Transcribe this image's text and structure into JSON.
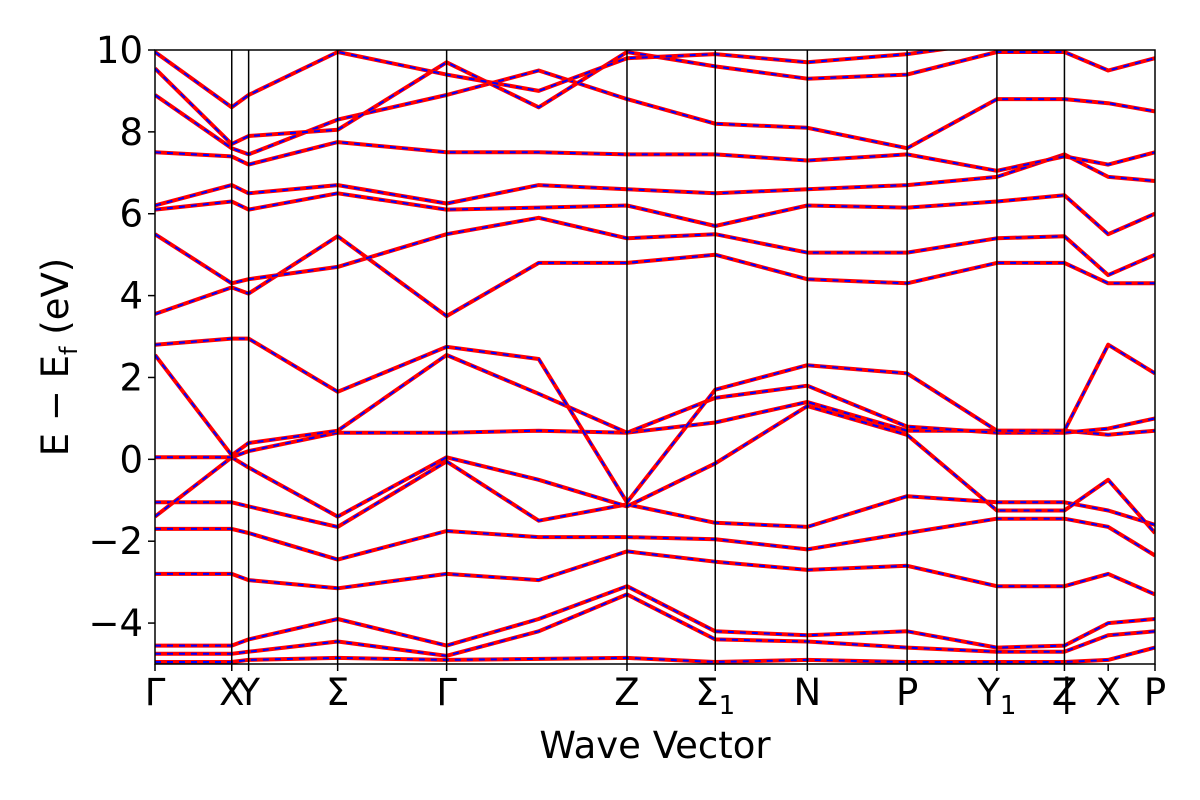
{
  "chart_data": {
    "type": "line",
    "title": "",
    "xlabel": "Wave Vector",
    "ylabel": "E − E",
    "ylabel_subscript": "f",
    "ylabel_unit": "(eV)",
    "ylim": [
      -5,
      10
    ],
    "yticks": [
      -4,
      -2,
      0,
      2,
      4,
      6,
      8,
      10
    ],
    "ytick_labels": [
      "−4",
      "−2",
      "0",
      "2",
      "4",
      "6",
      "8",
      "10"
    ],
    "xlim": [
      0,
      13.03
    ],
    "kpoints": [
      {
        "label": "Γ",
        "sub": "",
        "x": 0.0
      },
      {
        "label": "X",
        "sub": "",
        "x": 1.0
      },
      {
        "label": "Y",
        "sub": "",
        "x": 1.22
      },
      {
        "label": "Σ",
        "sub": "",
        "x": 2.38
      },
      {
        "label": "Γ",
        "sub": "",
        "x": 3.8
      },
      {
        "label": "Z",
        "sub": "",
        "x": 6.15
      },
      {
        "label": "Σ",
        "sub": "1",
        "x": 7.3
      },
      {
        "label": "N",
        "sub": "",
        "x": 8.5
      },
      {
        "label": "P",
        "sub": "",
        "x": 9.8
      },
      {
        "label": "Y",
        "sub": "1",
        "x": 10.97
      },
      {
        "label": "Z",
        "sub": "",
        "x": 11.85
      },
      {
        "label": "|",
        "sub": "",
        "x": 11.88
      },
      {
        "label": "X",
        "sub": "",
        "x": 12.42
      },
      {
        "label": "P",
        "sub": "",
        "x": 13.03
      }
    ],
    "vlines": [
      1.0,
      1.22,
      2.38,
      3.8,
      6.15,
      7.3,
      8.5,
      9.8,
      10.97,
      11.85
    ],
    "series_styles": [
      {
        "style": "solid",
        "color": "#ff0000"
      },
      {
        "style": "dashed",
        "color": "#0000ff"
      }
    ],
    "bands": [
      [
        [
          0,
          -4.95
        ],
        [
          1,
          -4.95
        ],
        [
          1.22,
          -4.9
        ],
        [
          2.38,
          -4.85
        ],
        [
          3.8,
          -4.9
        ],
        [
          6.15,
          -4.85
        ],
        [
          7.3,
          -4.95
        ],
        [
          8.5,
          -4.9
        ],
        [
          9.8,
          -4.95
        ],
        [
          10.97,
          -4.95
        ],
        [
          11.85,
          -4.95
        ],
        [
          12.42,
          -4.9
        ],
        [
          13.03,
          -4.6
        ]
      ],
      [
        [
          0,
          -4.75
        ],
        [
          1,
          -4.75
        ],
        [
          1.22,
          -4.7
        ],
        [
          2.38,
          -4.45
        ],
        [
          3.8,
          -4.8
        ],
        [
          5.0,
          -4.2
        ],
        [
          6.15,
          -3.3
        ],
        [
          7.3,
          -4.4
        ],
        [
          8.5,
          -4.45
        ],
        [
          9.8,
          -4.6
        ],
        [
          10.97,
          -4.7
        ],
        [
          11.85,
          -4.7
        ],
        [
          12.42,
          -4.3
        ],
        [
          13.03,
          -4.2
        ]
      ],
      [
        [
          0,
          -4.55
        ],
        [
          1,
          -4.55
        ],
        [
          1.22,
          -4.4
        ],
        [
          2.38,
          -3.9
        ],
        [
          3.8,
          -4.55
        ],
        [
          5.0,
          -3.9
        ],
        [
          6.15,
          -3.1
        ],
        [
          7.3,
          -4.2
        ],
        [
          8.5,
          -4.3
        ],
        [
          9.8,
          -4.2
        ],
        [
          10.97,
          -4.6
        ],
        [
          11.85,
          -4.55
        ],
        [
          12.42,
          -4.0
        ],
        [
          13.03,
          -3.9
        ]
      ],
      [
        [
          0,
          -2.8
        ],
        [
          1,
          -2.8
        ],
        [
          1.22,
          -2.95
        ],
        [
          2.38,
          -3.15
        ],
        [
          3.8,
          -2.8
        ],
        [
          5.0,
          -2.95
        ],
        [
          6.15,
          -2.25
        ],
        [
          7.3,
          -2.5
        ],
        [
          8.5,
          -2.7
        ],
        [
          9.8,
          -2.6
        ],
        [
          10.97,
          -3.1
        ],
        [
          11.85,
          -3.1
        ],
        [
          12.42,
          -2.8
        ],
        [
          13.03,
          -3.3
        ]
      ],
      [
        [
          0,
          -1.7
        ],
        [
          1,
          -1.7
        ],
        [
          1.22,
          -1.8
        ],
        [
          2.38,
          -2.45
        ],
        [
          3.8,
          -1.75
        ],
        [
          5.0,
          -1.9
        ],
        [
          6.15,
          -1.9
        ],
        [
          7.3,
          -1.95
        ],
        [
          8.5,
          -2.2
        ],
        [
          9.8,
          -1.8
        ],
        [
          10.97,
          -1.45
        ],
        [
          11.85,
          -1.45
        ],
        [
          12.42,
          -1.65
        ],
        [
          13.03,
          -2.35
        ]
      ],
      [
        [
          0,
          -1.05
        ],
        [
          1,
          -1.05
        ],
        [
          1.22,
          -1.15
        ],
        [
          2.38,
          -1.65
        ],
        [
          3.8,
          -0.05
        ],
        [
          5.0,
          -1.5
        ],
        [
          6.15,
          -1.1
        ],
        [
          7.3,
          -1.55
        ],
        [
          8.5,
          -1.65
        ],
        [
          9.8,
          -0.9
        ],
        [
          10.97,
          -1.05
        ],
        [
          11.85,
          -1.05
        ],
        [
          12.42,
          -1.25
        ],
        [
          13.03,
          -1.6
        ]
      ],
      [
        [
          0,
          -1.4
        ],
        [
          1,
          0.05
        ],
        [
          1.22,
          -0.2
        ],
        [
          2.38,
          -1.4
        ],
        [
          3.8,
          0.05
        ],
        [
          5.0,
          -0.5
        ],
        [
          6.15,
          -1.15
        ],
        [
          7.3,
          -0.1
        ],
        [
          8.5,
          1.3
        ],
        [
          9.8,
          0.6
        ],
        [
          10.97,
          -1.25
        ],
        [
          11.85,
          -1.25
        ],
        [
          12.42,
          -0.5
        ],
        [
          13.03,
          -1.8
        ]
      ],
      [
        [
          0,
          0.05
        ],
        [
          1,
          0.05
        ],
        [
          1.22,
          0.2
        ],
        [
          2.38,
          0.65
        ],
        [
          3.8,
          0.65
        ],
        [
          5.0,
          0.7
        ],
        [
          6.15,
          0.65
        ],
        [
          7.3,
          0.9
        ],
        [
          8.5,
          1.4
        ],
        [
          9.8,
          0.7
        ],
        [
          10.97,
          0.7
        ],
        [
          11.85,
          0.7
        ],
        [
          12.42,
          0.6
        ],
        [
          13.03,
          0.7
        ]
      ],
      [
        [
          0,
          2.55
        ],
        [
          1,
          0.1
        ],
        [
          1.22,
          0.4
        ],
        [
          2.38,
          0.7
        ],
        [
          3.8,
          2.55
        ],
        [
          5.0,
          1.6
        ],
        [
          6.15,
          0.65
        ],
        [
          7.3,
          1.5
        ],
        [
          8.5,
          1.8
        ],
        [
          9.8,
          0.8
        ],
        [
          10.97,
          0.65
        ],
        [
          11.85,
          0.65
        ],
        [
          12.42,
          0.75
        ],
        [
          13.03,
          1.0
        ]
      ],
      [
        [
          0,
          2.8
        ],
        [
          1,
          2.95
        ],
        [
          1.22,
          2.95
        ],
        [
          2.38,
          1.65
        ],
        [
          3.8,
          2.75
        ],
        [
          5.0,
          2.45
        ],
        [
          6.15,
          -1.05
        ],
        [
          7.3,
          1.7
        ],
        [
          8.5,
          2.3
        ],
        [
          9.8,
          2.1
        ],
        [
          10.97,
          0.7
        ],
        [
          11.85,
          0.7
        ],
        [
          12.42,
          2.8
        ],
        [
          13.03,
          2.1
        ]
      ],
      [
        [
          0,
          3.55
        ],
        [
          1,
          4.2
        ],
        [
          1.22,
          4.05
        ],
        [
          2.38,
          5.45
        ],
        [
          3.8,
          3.5
        ],
        [
          5.0,
          4.8
        ],
        [
          6.15,
          4.8
        ],
        [
          7.3,
          5.0
        ],
        [
          8.5,
          4.4
        ],
        [
          9.8,
          4.3
        ],
        [
          10.97,
          4.8
        ],
        [
          11.85,
          4.8
        ],
        [
          12.42,
          4.3
        ],
        [
          13.03,
          4.3
        ]
      ],
      [
        [
          0,
          5.5
        ],
        [
          1,
          4.3
        ],
        [
          1.22,
          4.4
        ],
        [
          2.38,
          4.7
        ],
        [
          3.8,
          5.5
        ],
        [
          5.0,
          5.9
        ],
        [
          6.15,
          5.4
        ],
        [
          7.3,
          5.5
        ],
        [
          8.5,
          5.05
        ],
        [
          9.8,
          5.05
        ],
        [
          10.97,
          5.4
        ],
        [
          11.85,
          5.45
        ],
        [
          12.42,
          4.5
        ],
        [
          13.03,
          5.0
        ]
      ],
      [
        [
          0,
          6.1
        ],
        [
          1,
          6.3
        ],
        [
          1.22,
          6.1
        ],
        [
          2.38,
          6.5
        ],
        [
          3.8,
          6.1
        ],
        [
          5.0,
          6.15
        ],
        [
          6.15,
          6.2
        ],
        [
          7.3,
          5.7
        ],
        [
          8.5,
          6.2
        ],
        [
          9.8,
          6.15
        ],
        [
          10.97,
          6.3
        ],
        [
          11.85,
          6.45
        ],
        [
          12.42,
          5.5
        ],
        [
          13.03,
          6.0
        ]
      ],
      [
        [
          0,
          6.2
        ],
        [
          1,
          6.7
        ],
        [
          1.22,
          6.5
        ],
        [
          2.38,
          6.7
        ],
        [
          3.8,
          6.25
        ],
        [
          5.0,
          6.7
        ],
        [
          6.15,
          6.6
        ],
        [
          7.3,
          6.5
        ],
        [
          8.5,
          6.6
        ],
        [
          9.8,
          6.7
        ],
        [
          10.97,
          6.9
        ],
        [
          11.85,
          7.45
        ],
        [
          12.42,
          6.9
        ],
        [
          13.03,
          6.8
        ]
      ],
      [
        [
          0,
          7.5
        ],
        [
          1,
          7.4
        ],
        [
          1.22,
          7.2
        ],
        [
          2.38,
          7.75
        ],
        [
          3.8,
          7.5
        ],
        [
          5.0,
          7.5
        ],
        [
          6.15,
          7.45
        ],
        [
          7.3,
          7.45
        ],
        [
          8.5,
          7.3
        ],
        [
          9.8,
          7.45
        ],
        [
          10.97,
          7.05
        ],
        [
          11.85,
          7.4
        ],
        [
          12.42,
          7.2
        ],
        [
          13.03,
          7.5
        ]
      ],
      [
        [
          0,
          8.9
        ],
        [
          1,
          7.6
        ],
        [
          1.22,
          7.45
        ],
        [
          2.38,
          8.3
        ],
        [
          3.8,
          8.9
        ],
        [
          5.0,
          9.5
        ],
        [
          6.15,
          8.8
        ],
        [
          7.3,
          8.2
        ],
        [
          8.5,
          8.1
        ],
        [
          9.8,
          7.6
        ],
        [
          10.97,
          8.8
        ],
        [
          11.85,
          8.8
        ],
        [
          12.42,
          8.7
        ],
        [
          13.03,
          8.5
        ]
      ],
      [
        [
          0,
          9.55
        ],
        [
          1,
          7.7
        ],
        [
          1.22,
          7.9
        ],
        [
          2.38,
          8.05
        ],
        [
          3.8,
          9.7
        ],
        [
          5.0,
          8.6
        ],
        [
          6.15,
          9.95
        ],
        [
          7.3,
          9.6
        ],
        [
          8.5,
          9.3
        ],
        [
          9.8,
          9.4
        ],
        [
          10.97,
          9.95
        ],
        [
          11.85,
          9.95
        ],
        [
          12.42,
          9.5
        ],
        [
          13.03,
          9.8
        ]
      ],
      [
        [
          0,
          9.95
        ],
        [
          1,
          8.6
        ],
        [
          1.22,
          8.9
        ],
        [
          2.38,
          9.95
        ],
        [
          3.8,
          9.4
        ],
        [
          5.0,
          9.0
        ],
        [
          6.15,
          9.8
        ],
        [
          7.3,
          9.9
        ],
        [
          8.5,
          9.7
        ],
        [
          9.8,
          9.9
        ],
        [
          10.97,
          10.2
        ],
        [
          11.85,
          10.2
        ],
        [
          12.42,
          10.1
        ],
        [
          13.03,
          10.2
        ]
      ]
    ]
  }
}
